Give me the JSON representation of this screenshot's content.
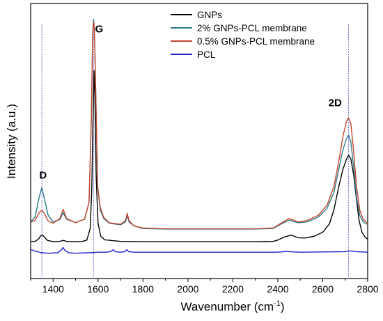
{
  "chart_data": {
    "type": "line",
    "xlabel_main": "Wavenumber (cm",
    "xlabel_sup": "-1",
    "xlabel_end": ")",
    "ylabel": "Intensity (a.u.)",
    "xlim": [
      1300,
      2800
    ],
    "x_ticks": [
      1400,
      1600,
      1800,
      2000,
      2200,
      2400,
      2600,
      2800
    ],
    "ylim": [
      0,
      1
    ],
    "legend_position": "top-right",
    "peak_labels": [
      {
        "text": "D",
        "x": 1355,
        "y": 0.38
      },
      {
        "text": "G",
        "x": 1605,
        "y": 0.935
      },
      {
        "text": "2D",
        "x": 2655,
        "y": 0.655
      }
    ],
    "reference_lines": [
      1350,
      1580,
      2715
    ],
    "reference_line_color": "#6b6bd6",
    "series": [
      {
        "name": "GNPs",
        "color": "#000000",
        "points": [
          [
            1300,
            0.14
          ],
          [
            1320,
            0.141
          ],
          [
            1335,
            0.15
          ],
          [
            1345,
            0.162
          ],
          [
            1352,
            0.166
          ],
          [
            1360,
            0.158
          ],
          [
            1375,
            0.145
          ],
          [
            1400,
            0.14
          ],
          [
            1430,
            0.141
          ],
          [
            1445,
            0.145
          ],
          [
            1460,
            0.141
          ],
          [
            1500,
            0.14
          ],
          [
            1530,
            0.141
          ],
          [
            1550,
            0.146
          ],
          [
            1565,
            0.19
          ],
          [
            1572,
            0.34
          ],
          [
            1578,
            0.62
          ],
          [
            1582,
            0.79
          ],
          [
            1586,
            0.69
          ],
          [
            1592,
            0.38
          ],
          [
            1600,
            0.21
          ],
          [
            1612,
            0.16
          ],
          [
            1630,
            0.147
          ],
          [
            1700,
            0.141
          ],
          [
            1800,
            0.14
          ],
          [
            1900,
            0.14
          ],
          [
            2000,
            0.14
          ],
          [
            2100,
            0.14
          ],
          [
            2200,
            0.14
          ],
          [
            2300,
            0.14
          ],
          [
            2380,
            0.141
          ],
          [
            2400,
            0.146
          ],
          [
            2430,
            0.158
          ],
          [
            2460,
            0.165
          ],
          [
            2490,
            0.155
          ],
          [
            2520,
            0.154
          ],
          [
            2560,
            0.16
          ],
          [
            2600,
            0.176
          ],
          [
            2630,
            0.208
          ],
          [
            2650,
            0.262
          ],
          [
            2670,
            0.345
          ],
          [
            2690,
            0.415
          ],
          [
            2705,
            0.452
          ],
          [
            2715,
            0.468
          ],
          [
            2725,
            0.455
          ],
          [
            2738,
            0.392
          ],
          [
            2750,
            0.3
          ],
          [
            2762,
            0.22
          ],
          [
            2775,
            0.175
          ],
          [
            2790,
            0.155
          ],
          [
            2800,
            0.15
          ]
        ]
      },
      {
        "name": "2% GNPs-PCL membrane",
        "color": "#2b7a8a",
        "points": [
          [
            1300,
            0.215
          ],
          [
            1320,
            0.235
          ],
          [
            1338,
            0.31
          ],
          [
            1350,
            0.345
          ],
          [
            1362,
            0.3
          ],
          [
            1378,
            0.24
          ],
          [
            1400,
            0.215
          ],
          [
            1430,
            0.224
          ],
          [
            1445,
            0.25
          ],
          [
            1460,
            0.225
          ],
          [
            1500,
            0.213
          ],
          [
            1540,
            0.225
          ],
          [
            1560,
            0.29
          ],
          [
            1570,
            0.6
          ],
          [
            1576,
            0.93
          ],
          [
            1580,
            0.985
          ],
          [
            1584,
            0.95
          ],
          [
            1590,
            0.7
          ],
          [
            1598,
            0.35
          ],
          [
            1610,
            0.26
          ],
          [
            1625,
            0.228
          ],
          [
            1650,
            0.21
          ],
          [
            1700,
            0.204
          ],
          [
            1722,
            0.215
          ],
          [
            1730,
            0.24
          ],
          [
            1738,
            0.215
          ],
          [
            1760,
            0.2
          ],
          [
            1800,
            0.19
          ],
          [
            1900,
            0.188
          ],
          [
            2000,
            0.188
          ],
          [
            2100,
            0.188
          ],
          [
            2200,
            0.188
          ],
          [
            2300,
            0.188
          ],
          [
            2380,
            0.19
          ],
          [
            2410,
            0.205
          ],
          [
            2450,
            0.222
          ],
          [
            2490,
            0.212
          ],
          [
            2530,
            0.215
          ],
          [
            2580,
            0.233
          ],
          [
            2620,
            0.268
          ],
          [
            2650,
            0.328
          ],
          [
            2670,
            0.41
          ],
          [
            2690,
            0.49
          ],
          [
            2705,
            0.53
          ],
          [
            2715,
            0.545
          ],
          [
            2725,
            0.52
          ],
          [
            2738,
            0.42
          ],
          [
            2750,
            0.31
          ],
          [
            2765,
            0.24
          ],
          [
            2780,
            0.215
          ],
          [
            2800,
            0.205
          ]
        ]
      },
      {
        "name": "0.5% GNPs-PCL membrane",
        "color": "#c4462e",
        "points": [
          [
            1300,
            0.213
          ],
          [
            1320,
            0.222
          ],
          [
            1338,
            0.25
          ],
          [
            1350,
            0.26
          ],
          [
            1362,
            0.245
          ],
          [
            1378,
            0.218
          ],
          [
            1400,
            0.21
          ],
          [
            1430,
            0.228
          ],
          [
            1445,
            0.263
          ],
          [
            1460,
            0.228
          ],
          [
            1500,
            0.212
          ],
          [
            1540,
            0.225
          ],
          [
            1560,
            0.29
          ],
          [
            1570,
            0.6
          ],
          [
            1576,
            0.92
          ],
          [
            1580,
            0.975
          ],
          [
            1584,
            0.95
          ],
          [
            1590,
            0.69
          ],
          [
            1598,
            0.35
          ],
          [
            1610,
            0.27
          ],
          [
            1625,
            0.232
          ],
          [
            1650,
            0.212
          ],
          [
            1700,
            0.206
          ],
          [
            1722,
            0.22
          ],
          [
            1730,
            0.248
          ],
          [
            1738,
            0.22
          ],
          [
            1760,
            0.2
          ],
          [
            1800,
            0.192
          ],
          [
            1900,
            0.189
          ],
          [
            2000,
            0.189
          ],
          [
            2100,
            0.189
          ],
          [
            2200,
            0.189
          ],
          [
            2300,
            0.189
          ],
          [
            2380,
            0.192
          ],
          [
            2410,
            0.208
          ],
          [
            2450,
            0.228
          ],
          [
            2490,
            0.215
          ],
          [
            2530,
            0.22
          ],
          [
            2580,
            0.24
          ],
          [
            2620,
            0.28
          ],
          [
            2650,
            0.35
          ],
          [
            2670,
            0.44
          ],
          [
            2690,
            0.54
          ],
          [
            2705,
            0.595
          ],
          [
            2715,
            0.61
          ],
          [
            2725,
            0.59
          ],
          [
            2738,
            0.48
          ],
          [
            2750,
            0.35
          ],
          [
            2765,
            0.26
          ],
          [
            2780,
            0.225
          ],
          [
            2800,
            0.21
          ]
        ]
      },
      {
        "name": "PCL",
        "color": "#1e20c8",
        "points": [
          [
            1300,
            0.11
          ],
          [
            1320,
            0.104
          ],
          [
            1350,
            0.098
          ],
          [
            1380,
            0.096
          ],
          [
            1420,
            0.098
          ],
          [
            1436,
            0.108
          ],
          [
            1444,
            0.118
          ],
          [
            1452,
            0.108
          ],
          [
            1470,
            0.098
          ],
          [
            1500,
            0.096
          ],
          [
            1560,
            0.098
          ],
          [
            1600,
            0.1
          ],
          [
            1640,
            0.1
          ],
          [
            1660,
            0.104
          ],
          [
            1668,
            0.11
          ],
          [
            1676,
            0.102
          ],
          [
            1700,
            0.1
          ],
          [
            1720,
            0.102
          ],
          [
            1728,
            0.11
          ],
          [
            1736,
            0.102
          ],
          [
            1760,
            0.1
          ],
          [
            1800,
            0.1
          ],
          [
            1900,
            0.1
          ],
          [
            2000,
            0.1
          ],
          [
            2100,
            0.1
          ],
          [
            2200,
            0.1
          ],
          [
            2300,
            0.1
          ],
          [
            2400,
            0.1
          ],
          [
            2440,
            0.103
          ],
          [
            2470,
            0.101
          ],
          [
            2500,
            0.1
          ],
          [
            2600,
            0.101
          ],
          [
            2700,
            0.102
          ],
          [
            2720,
            0.105
          ],
          [
            2750,
            0.102
          ],
          [
            2800,
            0.1
          ]
        ]
      }
    ]
  }
}
